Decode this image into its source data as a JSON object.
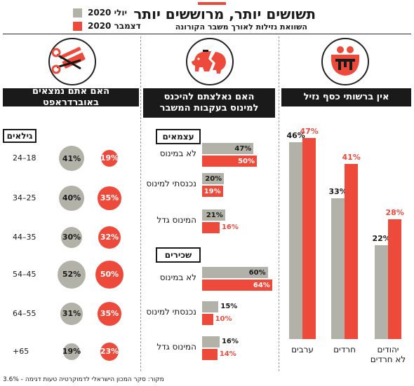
{
  "header": {
    "title": "תשושים יותר, מרוששים יותר",
    "subtitle": "השוואת נזילות לאורך משבר הקורונה",
    "legend": [
      {
        "label": "יולי 2020",
        "color": "#b3b2a8"
      },
      {
        "label": "דצמבר 2020",
        "color": "#ee4a3c"
      }
    ]
  },
  "icons": [
    "scissors-credit-card-icon",
    "broken-piggy-bank-icon",
    "empty-purse-icon"
  ],
  "chart_data": [
    {
      "type": "bubble",
      "title": "האם אתם נמצאים באוברדראפט",
      "group_label": "גילאים",
      "categories": [
        "24–18",
        "34–25",
        "44–35",
        "54–45",
        "64–55",
        "+65"
      ],
      "series": [
        {
          "name": "יולי 2020",
          "values": [
            41,
            40,
            30,
            52,
            31,
            19
          ]
        },
        {
          "name": "דצמבר 2020",
          "values": [
            19,
            35,
            32,
            50,
            35,
            23
          ]
        }
      ]
    },
    {
      "type": "bar",
      "orientation": "horizontal",
      "title": "האם נאלצתם להיכנס למינוס בעקבות המשבר",
      "groups": [
        {
          "label": "עצמאים",
          "categories": [
            "לא במינוס",
            "נכנסתי למינוס",
            "המינוס גדל"
          ],
          "series": [
            {
              "name": "יולי 2020",
              "values": [
                47,
                20,
                21
              ]
            },
            {
              "name": "דצמבר 2020",
              "values": [
                50,
                19,
                16
              ]
            }
          ]
        },
        {
          "label": "שכירים",
          "categories": [
            "לא במינוס",
            "נכנסתי למינוס",
            "המינוס גדל"
          ],
          "series": [
            {
              "name": "יולי 2020",
              "values": [
                60,
                15,
                16
              ]
            },
            {
              "name": "דצמבר 2020",
              "values": [
                64,
                10,
                14
              ]
            }
          ]
        }
      ]
    },
    {
      "type": "bar",
      "orientation": "vertical",
      "title": "אין ברשותי כסף נזיל",
      "categories": [
        "ערבים",
        "חרדים",
        "יהודים\nלא חרדים"
      ],
      "series": [
        {
          "name": "יולי 2020",
          "values": [
            46,
            33,
            22
          ]
        },
        {
          "name": "דצמבר 2020",
          "values": [
            47,
            41,
            28
          ]
        }
      ]
    }
  ],
  "footer": {
    "source": "מקור: סקר המכון הישראלי לדמוקרטיה טעות דגימה - 3.6%"
  }
}
